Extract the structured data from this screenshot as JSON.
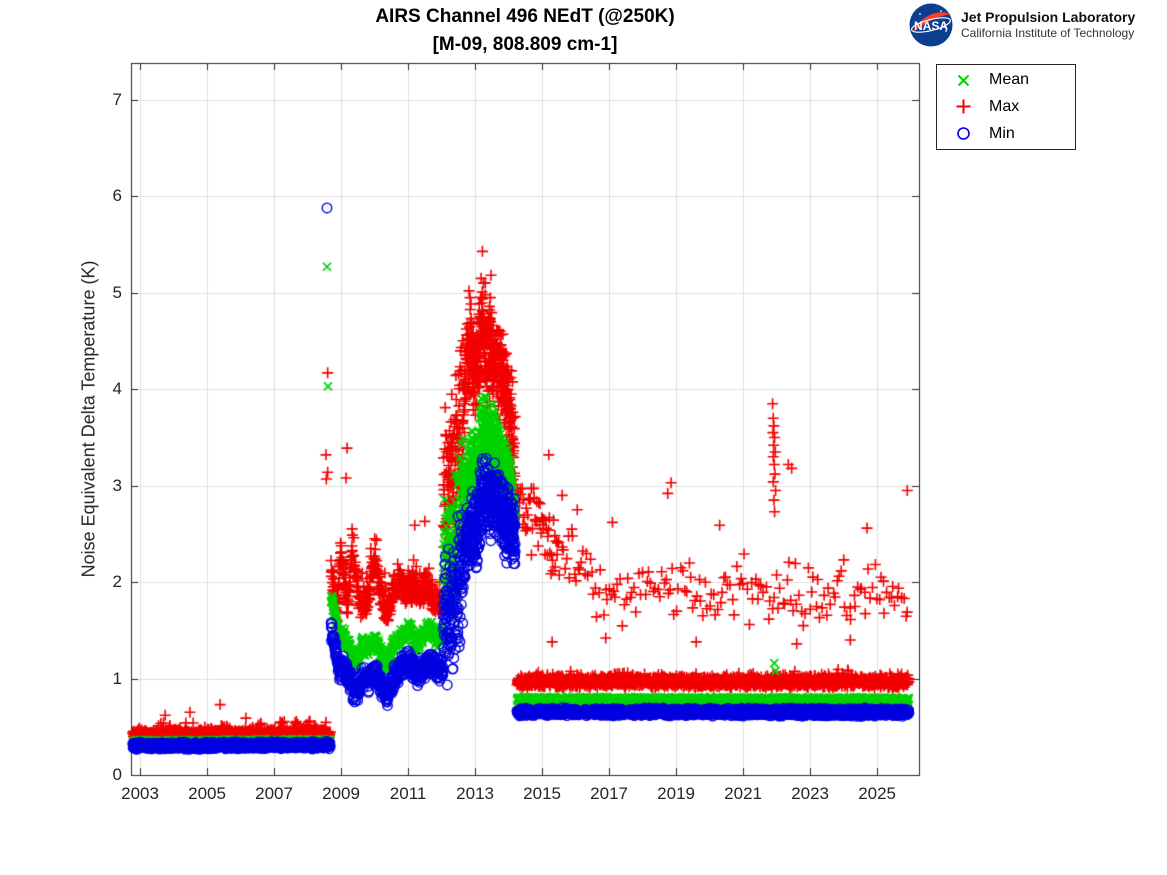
{
  "logo": {
    "org": "NASA",
    "line1": "Jet Propulsion Laboratory",
    "line2": "California Institute of Technology",
    "meatball_blue": "#0b3d91",
    "swoosh_red": "#fc3d21"
  },
  "chart_data": {
    "type": "scatter",
    "title": "AIRS Channel 496 NEdT (@250K)",
    "subtitle": "[M-09, 808.809 cm-1]",
    "xlabel": "",
    "ylabel": "Noise Equivalent Delta Temperature (K)",
    "xlim": [
      2002.73,
      2026.25
    ],
    "ylim": [
      0,
      7.383
    ],
    "xticks": [
      2003,
      2005,
      2007,
      2009,
      2011,
      2013,
      2015,
      2017,
      2019,
      2021,
      2023,
      2025
    ],
    "yticks": [
      0,
      1,
      2,
      3,
      4,
      5,
      6,
      7
    ],
    "grid": true,
    "grid_color": "#e0e0e0",
    "axis_color": "#262626",
    "legend_position": "outside-top-right",
    "draw_order": [
      "max",
      "mean",
      "min"
    ],
    "series": {
      "mean": {
        "label": "Mean",
        "marker": "x",
        "color": "#00d300"
      },
      "max": {
        "label": "Max",
        "marker": "+",
        "color": "#f20000"
      },
      "min": {
        "label": "Min",
        "marker": "o",
        "color": "#0000e0"
      }
    },
    "segments": [
      {
        "s": "max",
        "x": [
          2002.78,
          2008.68
        ],
        "n": 900,
        "c": [
          [
            2002.78,
            0.42
          ],
          [
            2008.68,
            0.43
          ]
        ],
        "w": 0.05,
        "tp": 0.18,
        "tm": 0.13
      },
      {
        "s": "max",
        "x": [
          2008.7,
          2012.05
        ],
        "n": 520,
        "c": [
          [
            2008.7,
            2.2
          ],
          [
            2008.78,
            1.9
          ],
          [
            2008.88,
            1.7
          ],
          [
            2009.0,
            2.35
          ],
          [
            2009.1,
            1.95
          ],
          [
            2009.22,
            1.75
          ],
          [
            2009.33,
            2.4
          ],
          [
            2009.45,
            2.0
          ],
          [
            2009.6,
            1.7
          ],
          [
            2009.8,
            1.85
          ],
          [
            2010.0,
            2.25
          ],
          [
            2010.15,
            1.95
          ],
          [
            2010.35,
            1.65
          ],
          [
            2010.55,
            1.9
          ],
          [
            2010.75,
            2.0
          ],
          [
            2010.95,
            1.85
          ],
          [
            2011.15,
            1.95
          ],
          [
            2011.35,
            1.85
          ],
          [
            2011.55,
            2.0
          ],
          [
            2011.75,
            1.8
          ],
          [
            2012.05,
            1.75
          ]
        ],
        "w": 0.17,
        "tp": 0.22,
        "tm": 0.3
      },
      {
        "s": "max",
        "x": [
          2012.05,
          2012.7
        ],
        "n": 150,
        "c": [
          [
            2012.05,
            2.8
          ],
          [
            2012.4,
            3.3
          ],
          [
            2012.7,
            3.8
          ]
        ],
        "w": 1.0,
        "tp": 0.15,
        "tm": 0.4
      },
      {
        "s": "max",
        "x": [
          2012.7,
          2014.2
        ],
        "n": 450,
        "c": [
          [
            2012.7,
            4.2
          ],
          [
            2012.85,
            4.45
          ],
          [
            2013.0,
            4.1
          ],
          [
            2013.2,
            4.6
          ],
          [
            2013.35,
            4.3
          ],
          [
            2013.5,
            4.4
          ],
          [
            2013.7,
            4.2
          ],
          [
            2013.9,
            4.0
          ],
          [
            2014.05,
            3.6
          ],
          [
            2014.2,
            3.1
          ]
        ],
        "w": 0.55,
        "tp": 0.25,
        "tm": 0.5
      },
      {
        "s": "max",
        "x": [
          2014.25,
          2025.95
        ],
        "n": 1800,
        "c": [
          [
            2014.25,
            0.965
          ],
          [
            2025.95,
            0.96
          ]
        ],
        "w": 0.065,
        "tp": 0.3,
        "tm": 0.09
      },
      {
        "s": "max",
        "x": [
          2014.25,
          2015.5
        ],
        "n": 55,
        "c": [
          [
            2014.25,
            2.85
          ],
          [
            2014.6,
            2.7
          ],
          [
            2015.0,
            2.55
          ],
          [
            2015.5,
            2.35
          ]
        ],
        "w": 0.42,
        "tp": 0.1,
        "tm": 0.4
      },
      {
        "s": "max",
        "x": [
          2015.5,
          2016.6
        ],
        "n": 22,
        "c": [
          [
            2015.5,
            2.2
          ],
          [
            2016.6,
            2.0
          ]
        ],
        "w": 0.45
      },
      {
        "s": "max",
        "x": [
          2016.6,
          2025.95
        ],
        "n": 150,
        "c": [
          [
            2016.6,
            1.87
          ],
          [
            2025.95,
            1.85
          ]
        ],
        "w": 0.38,
        "tp": 0.12,
        "tm": 0.3
      },
      {
        "s": "mean",
        "x": [
          2002.78,
          2008.68
        ],
        "n": 900,
        "c": [
          [
            2002.78,
            0.34
          ],
          [
            2008.68,
            0.35
          ]
        ],
        "w": 0.025
      },
      {
        "s": "mean",
        "x": [
          2008.7,
          2012.05
        ],
        "n": 520,
        "c": [
          [
            2008.7,
            1.83
          ],
          [
            2008.82,
            1.68
          ],
          [
            2008.95,
            1.41
          ],
          [
            2009.1,
            1.45
          ],
          [
            2009.25,
            1.31
          ],
          [
            2009.45,
            1.15
          ],
          [
            2009.62,
            1.35
          ],
          [
            2009.82,
            1.31
          ],
          [
            2010.02,
            1.41
          ],
          [
            2010.2,
            1.25
          ],
          [
            2010.38,
            1.15
          ],
          [
            2010.58,
            1.35
          ],
          [
            2010.82,
            1.45
          ],
          [
            2011.05,
            1.51
          ],
          [
            2011.25,
            1.35
          ],
          [
            2011.45,
            1.45
          ],
          [
            2011.68,
            1.51
          ],
          [
            2011.85,
            1.41
          ],
          [
            2012.05,
            1.45
          ]
        ],
        "w": 0.11
      },
      {
        "s": "mean",
        "x": [
          2012.05,
          2012.7
        ],
        "n": 150,
        "c": [
          [
            2012.05,
            2.1
          ],
          [
            2012.4,
            2.4
          ],
          [
            2012.7,
            2.9
          ]
        ],
        "w": 0.75
      },
      {
        "s": "mean",
        "x": [
          2012.7,
          2014.2
        ],
        "n": 450,
        "c": [
          [
            2012.7,
            3.0
          ],
          [
            2012.9,
            3.25
          ],
          [
            2013.05,
            3.15
          ],
          [
            2013.2,
            3.7
          ],
          [
            2013.4,
            3.5
          ],
          [
            2013.6,
            3.45
          ],
          [
            2013.8,
            3.3
          ],
          [
            2014.0,
            3.0
          ],
          [
            2014.2,
            2.7
          ]
        ],
        "w": 0.38
      },
      {
        "s": "mean",
        "x": [
          2014.25,
          2025.95
        ],
        "n": 1800,
        "c": [
          [
            2014.25,
            0.785
          ],
          [
            2025.95,
            0.78
          ]
        ],
        "w": 0.03
      },
      {
        "s": "min",
        "x": [
          2002.78,
          2008.68
        ],
        "n": 900,
        "c": [
          [
            2002.78,
            0.3
          ],
          [
            2008.68,
            0.31
          ]
        ],
        "w": 0.04
      },
      {
        "s": "min",
        "x": [
          2008.7,
          2012.05
        ],
        "n": 520,
        "c": [
          [
            2008.7,
            1.5
          ],
          [
            2008.82,
            1.35
          ],
          [
            2008.95,
            1.08
          ],
          [
            2009.1,
            1.12
          ],
          [
            2009.25,
            0.98
          ],
          [
            2009.45,
            0.82
          ],
          [
            2009.62,
            1.02
          ],
          [
            2009.82,
            0.98
          ],
          [
            2010.02,
            1.08
          ],
          [
            2010.2,
            0.92
          ],
          [
            2010.38,
            0.82
          ],
          [
            2010.58,
            1.02
          ],
          [
            2010.82,
            1.12
          ],
          [
            2011.05,
            1.18
          ],
          [
            2011.25,
            1.02
          ],
          [
            2011.45,
            1.12
          ],
          [
            2011.68,
            1.18
          ],
          [
            2011.85,
            1.08
          ],
          [
            2012.05,
            1.12
          ]
        ],
        "w": 0.14
      },
      {
        "s": "min",
        "x": [
          2012.05,
          2012.7
        ],
        "n": 150,
        "c": [
          [
            2012.05,
            1.5
          ],
          [
            2012.4,
            1.85
          ],
          [
            2012.7,
            2.35
          ]
        ],
        "w": 0.75
      },
      {
        "s": "min",
        "x": [
          2012.7,
          2014.2
        ],
        "n": 450,
        "c": [
          [
            2012.7,
            2.35
          ],
          [
            2012.9,
            2.55
          ],
          [
            2013.05,
            2.45
          ],
          [
            2013.2,
            2.95
          ],
          [
            2013.4,
            2.8
          ],
          [
            2013.6,
            2.85
          ],
          [
            2013.8,
            2.7
          ],
          [
            2014.0,
            2.6
          ],
          [
            2014.2,
            2.5
          ]
        ],
        "w": 0.45
      },
      {
        "s": "min",
        "x": [
          2014.25,
          2025.95
        ],
        "n": 1800,
        "c": [
          [
            2014.25,
            0.655
          ],
          [
            2025.95,
            0.65
          ]
        ],
        "w": 0.045
      }
    ],
    "outliers": [
      {
        "s": "max",
        "pts": [
          [
            2003.75,
            0.62
          ],
          [
            2004.49,
            0.65
          ],
          [
            2005.39,
            0.73
          ],
          [
            2006.16,
            0.59
          ],
          [
            2007.18,
            0.55
          ],
          [
            2008.07,
            0.56
          ],
          [
            2008.55,
            3.32
          ],
          [
            2008.6,
            3.14
          ],
          [
            2008.56,
            3.07
          ],
          [
            2008.6,
            4.17
          ],
          [
            2009.18,
            3.39
          ],
          [
            2009.15,
            3.08
          ],
          [
            2011.2,
            2.59
          ],
          [
            2011.5,
            2.63
          ],
          [
            2012.82,
            5.02
          ],
          [
            2012.85,
            4.95
          ],
          [
            2013.18,
            5.15
          ],
          [
            2013.22,
            5.43
          ],
          [
            2013.25,
            5.1
          ],
          [
            2013.3,
            4.98
          ],
          [
            2015.2,
            3.32
          ],
          [
            2015.6,
            2.9
          ],
          [
            2016.05,
            2.75
          ],
          [
            2017.1,
            2.62
          ],
          [
            2018.75,
            2.92
          ],
          [
            2018.85,
            3.03
          ],
          [
            2020.3,
            2.59
          ],
          [
            2021.88,
            3.85
          ],
          [
            2021.9,
            3.7
          ],
          [
            2021.92,
            3.62
          ],
          [
            2021.89,
            3.55
          ],
          [
            2021.94,
            3.5
          ],
          [
            2021.91,
            3.42
          ],
          [
            2021.96,
            3.35
          ],
          [
            2021.9,
            3.3
          ],
          [
            2021.93,
            3.22
          ],
          [
            2021.95,
            3.12
          ],
          [
            2021.9,
            3.04
          ],
          [
            2021.97,
            2.95
          ],
          [
            2021.92,
            2.85
          ],
          [
            2021.94,
            2.73
          ],
          [
            2022.35,
            3.22
          ],
          [
            2022.45,
            3.18
          ],
          [
            2024.7,
            2.56
          ],
          [
            2025.9,
            2.95
          ],
          [
            2015.3,
            1.38
          ],
          [
            2016.9,
            1.42
          ],
          [
            2019.6,
            1.38
          ],
          [
            2022.6,
            1.36
          ],
          [
            2024.2,
            1.4
          ]
        ]
      },
      {
        "s": "mean",
        "pts": [
          [
            2008.58,
            5.27
          ],
          [
            2008.61,
            4.03
          ],
          [
            2021.93,
            1.16
          ],
          [
            2021.97,
            1.08
          ]
        ]
      },
      {
        "s": "min",
        "pts": [
          [
            2008.58,
            5.88
          ]
        ]
      }
    ]
  }
}
